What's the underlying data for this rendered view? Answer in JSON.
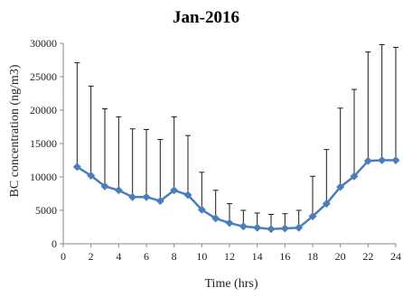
{
  "chart_data": {
    "type": "line",
    "title": "Jan-2016",
    "xlabel": "Time (hrs)",
    "ylabel": "BC concentration (ng/m3)",
    "xlim": [
      0,
      24
    ],
    "ylim": [
      0,
      30000
    ],
    "x_ticks": [
      0,
      2,
      4,
      6,
      8,
      10,
      12,
      14,
      16,
      18,
      20,
      22,
      24
    ],
    "y_ticks": [
      0,
      5000,
      10000,
      15000,
      20000,
      25000,
      30000
    ],
    "grid": false,
    "legend": "none",
    "series": [
      {
        "color": "#4a7ebb",
        "x": [
          1,
          2,
          3,
          4,
          5,
          6,
          7,
          8,
          9,
          10,
          11,
          12,
          13,
          14,
          15,
          16,
          17,
          18,
          19,
          20,
          21,
          22,
          23,
          24
        ],
        "values": [
          11500,
          10200,
          8600,
          8000,
          7000,
          7000,
          6400,
          8000,
          7300,
          5100,
          3800,
          3100,
          2600,
          2400,
          2200,
          2300,
          2400,
          4100,
          6000,
          8500,
          10100,
          12400,
          12500,
          12500
        ],
        "error_upper": [
          27100,
          23600,
          20200,
          19000,
          17200,
          17100,
          15600,
          19000,
          16200,
          10700,
          8000,
          6000,
          5000,
          4600,
          4400,
          4500,
          5000,
          10100,
          14100,
          20300,
          23100,
          28700,
          29800,
          29400
        ]
      }
    ]
  }
}
